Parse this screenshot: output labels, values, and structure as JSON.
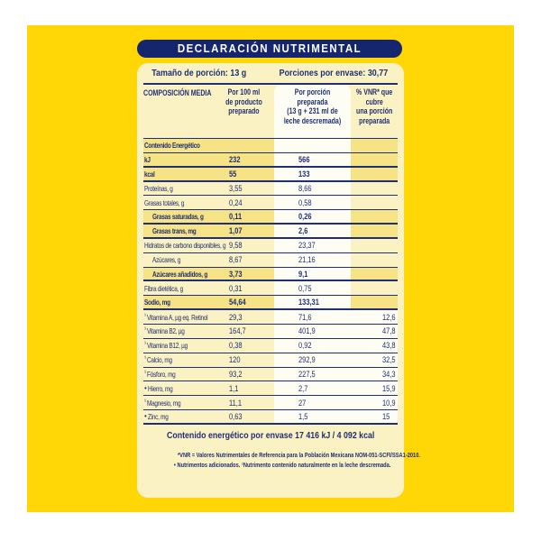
{
  "colors": {
    "yellow": "#FFD606",
    "panel": "#FBF2C3",
    "hl": "#F6E386",
    "whitecol": "#FEFDF3",
    "navy": "#1F2E75",
    "pill": "#15266F"
  },
  "label": {
    "title": "DECLARACIÓN NUTRIMENTAL",
    "serving": {
      "size": "Tamaño de porción: 13 g",
      "per_package": "Porciones por envase: 30,77"
    },
    "columns": {
      "c1": "COMPOSICIÓN MEDIA",
      "c2": "Por 100 ml\nde producto\npreparado",
      "c3": "Por porción preparada\n(13 g + 231 ml de\nleche descremada)",
      "c4": "% VNR* que\ncubre\nuna porción\npreparada"
    },
    "rows": [
      {
        "name": "Contenido Energético",
        "per_100ml": "",
        "per_portion": "",
        "pct_vnr": "",
        "bold": true,
        "highlight": true
      },
      {
        "name": "kJ",
        "per_100ml": "232",
        "per_portion": "566",
        "pct_vnr": "",
        "bold": true,
        "highlight": true,
        "thick": true
      },
      {
        "name": "kcal",
        "per_100ml": "55",
        "per_portion": "133",
        "pct_vnr": "",
        "bold": true,
        "highlight": true,
        "thick": true
      },
      {
        "name": "Proteínas, g",
        "per_100ml": "3,55",
        "per_portion": "8,66",
        "pct_vnr": ""
      },
      {
        "name": "Grasas totales, g",
        "per_100ml": "0,24",
        "per_portion": "0,58",
        "pct_vnr": ""
      },
      {
        "name": "Grasas saturadas, g",
        "per_100ml": "0,11",
        "per_portion": "0,26",
        "pct_vnr": "",
        "bold": true,
        "indent": true,
        "highlight": true,
        "thick": true
      },
      {
        "name": "Grasas trans, mg",
        "per_100ml": "1,07",
        "per_portion": "2,6",
        "pct_vnr": "",
        "bold": true,
        "indent": true,
        "highlight": true,
        "thick": true
      },
      {
        "name": "Hidratos de carbono disponibles, g",
        "per_100ml": "9,58",
        "per_portion": "23,37",
        "pct_vnr": ""
      },
      {
        "name": "Azúcares, g",
        "per_100ml": "8,67",
        "per_portion": "21,16",
        "pct_vnr": "",
        "indent": true
      },
      {
        "name": "Azúcares añadidos, g",
        "per_100ml": "3,73",
        "per_portion": "9,1",
        "pct_vnr": "",
        "bold": true,
        "indent": true,
        "highlight": true,
        "thick": true
      },
      {
        "name": "Fibra dietética, g",
        "per_100ml": "0,31",
        "per_portion": "0,75",
        "pct_vnr": ""
      },
      {
        "name": "Sodio, mg",
        "per_100ml": "54,64",
        "per_portion": "133,31",
        "pct_vnr": "",
        "bold": true,
        "highlight": true,
        "thick": true
      },
      {
        "prefix": "¹",
        "name": "Vitamina A, µg eq. Retinol",
        "per_100ml": "29,3",
        "per_portion": "71,6",
        "pct_vnr": "12,6"
      },
      {
        "prefix": "¹",
        "name": "Vitamina B2, µg",
        "per_100ml": "164,7",
        "per_portion": "401,9",
        "pct_vnr": "47,8"
      },
      {
        "prefix": "¹",
        "name": "Vitamina B12, µg",
        "per_100ml": "0,38",
        "per_portion": "0,92",
        "pct_vnr": "43,8"
      },
      {
        "prefix": "¹",
        "name": "Calcio, mg",
        "per_100ml": "120",
        "per_portion": "292,9",
        "pct_vnr": "32,5"
      },
      {
        "prefix": "¹",
        "name": "Fósforo, mg",
        "per_100ml": "93,2",
        "per_portion": "227,5",
        "pct_vnr": "34,3"
      },
      {
        "prefix": "•",
        "name": "Hierro, mg",
        "per_100ml": "1,1",
        "per_portion": "2,7",
        "pct_vnr": "15,9"
      },
      {
        "prefix": "¹",
        "name": "Magnesio, mg",
        "per_100ml": "11,1",
        "per_portion": "27",
        "pct_vnr": "10,9"
      },
      {
        "prefix": "•",
        "name": "Zinc, mg",
        "per_100ml": "0,63",
        "per_portion": "1,5",
        "pct_vnr": "15",
        "thick": true
      }
    ],
    "energy_per_package": "Contenido energético por envase 17 416 kJ / 4 092 kcal",
    "footnotes": [
      "*VNR = Valores Nutrimentales de Referencia para la Población Mexicana NOM-051-SCFI/SSA1-2010.",
      "• Nutrimentos adicionados. ¹Nutrimento contenido naturalmente en la leche descremada."
    ]
  }
}
